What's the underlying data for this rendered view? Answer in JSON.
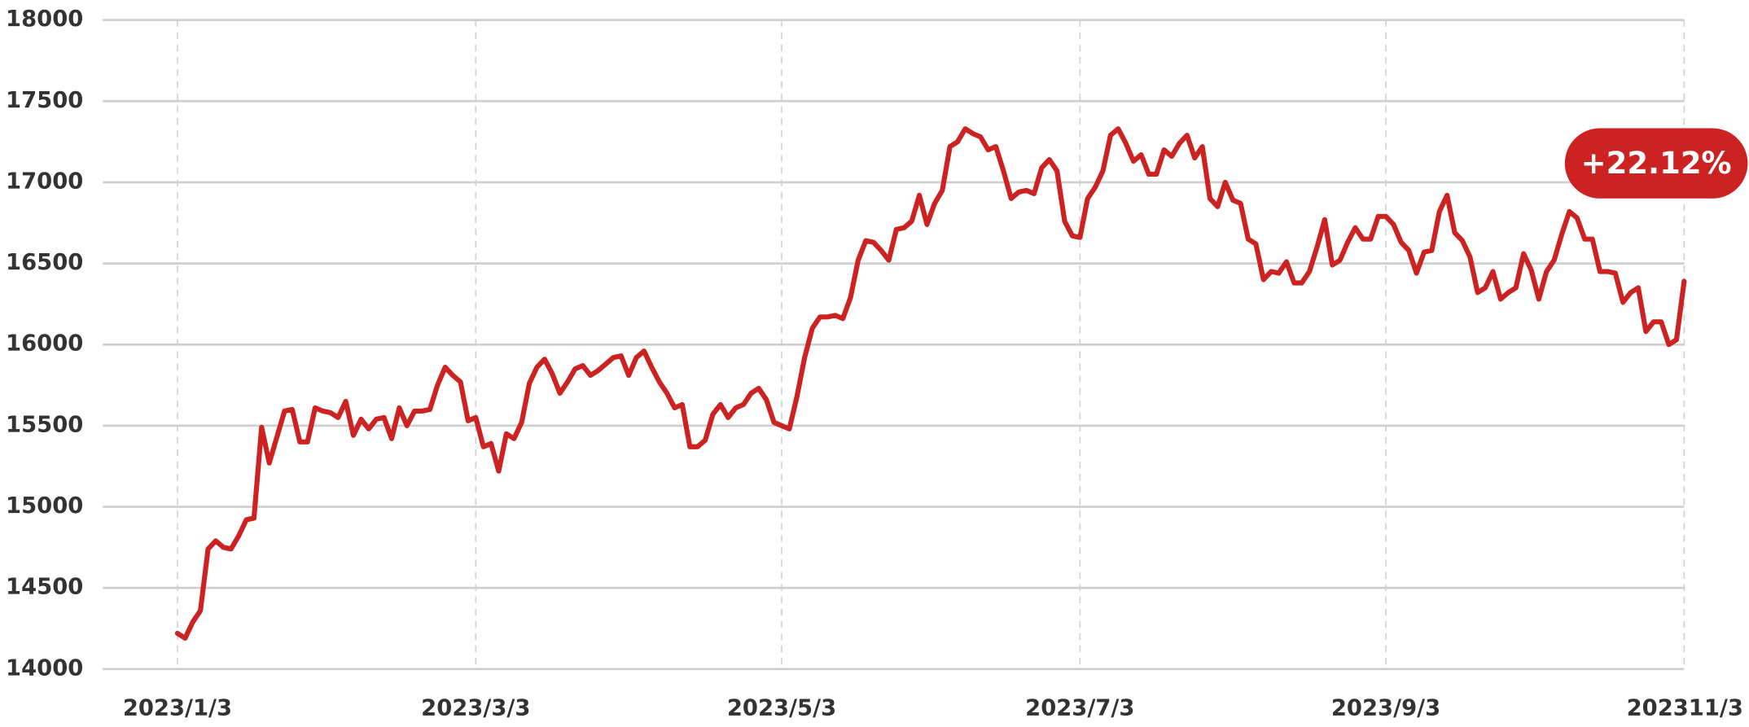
{
  "chart_data": {
    "type": "line",
    "annotation": "+22.12%",
    "color": "#cc2222",
    "grid": true,
    "ylim": [
      14000,
      18000
    ],
    "yticks": [
      14000,
      14500,
      15000,
      15500,
      16000,
      16500,
      17000,
      17500,
      18000
    ],
    "categories": [
      "2023/1/3",
      null,
      null,
      null,
      null,
      null,
      null,
      null,
      null,
      null,
      null,
      null,
      null,
      null,
      null,
      null,
      null,
      null,
      null,
      null,
      null,
      null,
      null,
      null,
      null,
      null,
      null,
      null,
      null,
      null,
      null,
      null,
      null,
      null,
      null,
      null,
      null,
      null,
      null,
      "2023/3/3",
      null,
      null,
      null,
      null,
      null,
      null,
      null,
      null,
      null,
      null,
      null,
      null,
      null,
      null,
      null,
      null,
      null,
      null,
      null,
      null,
      null,
      null,
      null,
      null,
      null,
      null,
      null,
      null,
      null,
      null,
      null,
      null,
      null,
      null,
      null,
      null,
      null,
      null,
      null,
      "2023/5/3",
      null,
      null,
      null,
      null,
      null,
      null,
      null,
      null,
      null,
      null,
      null,
      null,
      null,
      null,
      null,
      null,
      null,
      null,
      null,
      null,
      null,
      null,
      null,
      null,
      null,
      null,
      null,
      null,
      null,
      null,
      null,
      null,
      null,
      null,
      null,
      null,
      null,
      null,
      "2023/7/3",
      null,
      null,
      null,
      null,
      null,
      null,
      null,
      null,
      null,
      null,
      null,
      null,
      null,
      null,
      null,
      null,
      null,
      null,
      null,
      null,
      null,
      null,
      null,
      null,
      null,
      null,
      null,
      null,
      null,
      null,
      null,
      null,
      null,
      null,
      null,
      null,
      null,
      null,
      null,
      "2023/9/3",
      null,
      null,
      null,
      null,
      null,
      null,
      null,
      null,
      null,
      null,
      null,
      null,
      null,
      null,
      null,
      null,
      null,
      null,
      null,
      null,
      null,
      null,
      null,
      null,
      null,
      null,
      null,
      null,
      null,
      null,
      null,
      null,
      null,
      null,
      null,
      null,
      null,
      null,
      "202311/3"
    ],
    "values": [
      14220,
      14190,
      14290,
      14360,
      14740,
      14790,
      14750,
      14740,
      14820,
      14920,
      14930,
      15490,
      15270,
      15430,
      15590,
      15600,
      15400,
      15400,
      15610,
      15590,
      15580,
      15550,
      15650,
      15440,
      15540,
      15480,
      15540,
      15550,
      15420,
      15610,
      15500,
      15590,
      15590,
      15600,
      15750,
      15860,
      15810,
      15770,
      15530,
      15550,
      15370,
      15390,
      15220,
      15450,
      15420,
      15520,
      15760,
      15860,
      15910,
      15820,
      15700,
      15770,
      15850,
      15870,
      15810,
      15840,
      15880,
      15920,
      15930,
      15810,
      15920,
      15960,
      15860,
      15770,
      15700,
      15610,
      15630,
      15370,
      15370,
      15410,
      15570,
      15630,
      15550,
      15610,
      15630,
      15700,
      15730,
      15660,
      15520,
      15500,
      15480,
      15680,
      15920,
      16100,
      16170,
      16170,
      16180,
      16160,
      16290,
      16520,
      16640,
      16630,
      16580,
      16520,
      16710,
      16720,
      16760,
      16920,
      16740,
      16870,
      16950,
      17220,
      17250,
      17330,
      17300,
      17280,
      17200,
      17220,
      17070,
      16900,
      16940,
      16950,
      16930,
      17090,
      17140,
      17070,
      16760,
      16670,
      16660,
      16900,
      16970,
      17070,
      17290,
      17330,
      17240,
      17130,
      17170,
      17050,
      17050,
      17200,
      17160,
      17240,
      17290,
      17150,
      17220,
      16900,
      16850,
      17000,
      16890,
      16870,
      16650,
      16620,
      16400,
      16450,
      16440,
      16510,
      16380,
      16380,
      16450,
      16600,
      16770,
      16490,
      16520,
      16630,
      16720,
      16650,
      16650,
      16790,
      16790,
      16740,
      16630,
      16580,
      16440,
      16570,
      16580,
      16820,
      16920,
      16690,
      16640,
      16540,
      16320,
      16350,
      16450,
      16280,
      16320,
      16350,
      16560,
      16460,
      16280,
      16450,
      16520,
      16680,
      16820,
      16780,
      16650,
      16650,
      16450,
      16450,
      16440,
      16260,
      16320,
      16350,
      16080,
      16140,
      16140,
      16000,
      16030,
      16390
    ]
  }
}
